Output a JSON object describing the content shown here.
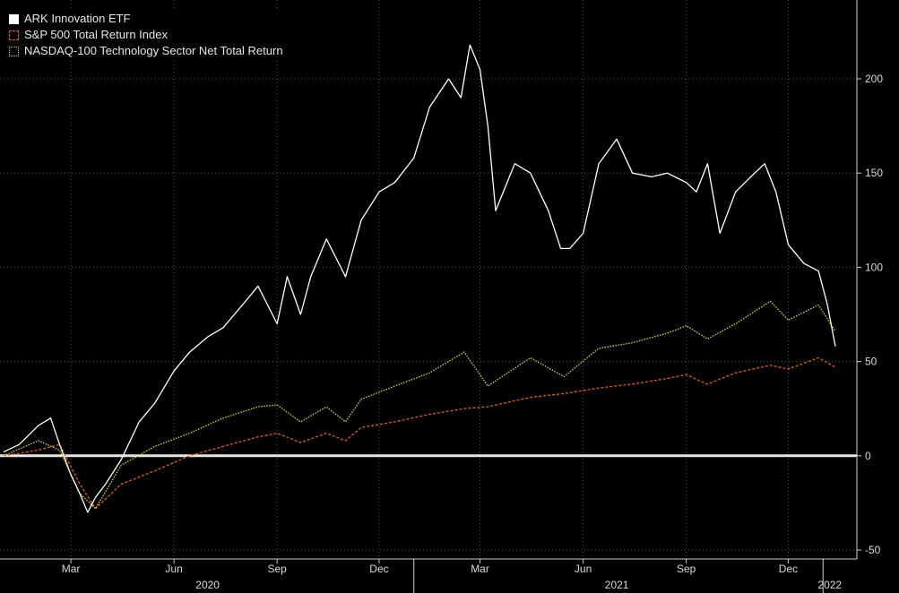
{
  "chart_data": {
    "type": "line",
    "ylim": [
      -50,
      230
    ],
    "ytick_values": [
      200,
      150,
      100,
      50,
      0,
      -50
    ],
    "ytick_labels": [
      "200",
      "150",
      "100",
      "50",
      "0",
      "-50"
    ],
    "xlim": [
      "2020-01-01",
      "2022-01-12"
    ],
    "month_ticks": [
      {
        "label": "Mar",
        "date": "2020-03-01"
      },
      {
        "label": "Jun",
        "date": "2020-06-01"
      },
      {
        "label": "Sep",
        "date": "2020-09-01"
      },
      {
        "label": "Dec",
        "date": "2020-12-01"
      },
      {
        "label": "Mar",
        "date": "2021-03-01"
      },
      {
        "label": "Jun",
        "date": "2021-06-01"
      },
      {
        "label": "Sep",
        "date": "2021-09-01"
      },
      {
        "label": "Dec",
        "date": "2021-12-01"
      }
    ],
    "year_labels": [
      {
        "label": "2020",
        "date": "2020-07-01"
      },
      {
        "label": "2021",
        "date": "2021-07-01"
      },
      {
        "label": "2022",
        "date": "2022-01-07"
      }
    ],
    "year_separators": [
      "2021-01-01",
      "2022-01-01"
    ],
    "zero_line": 0,
    "series": [
      {
        "name": "ARK Innovation ETF",
        "color": "#ffffff",
        "style": "solid",
        "x": [
          "2020-01-01",
          "2020-01-15",
          "2020-02-01",
          "2020-02-12",
          "2020-02-20",
          "2020-03-01",
          "2020-03-09",
          "2020-03-16",
          "2020-03-23",
          "2020-04-01",
          "2020-04-15",
          "2020-05-01",
          "2020-05-15",
          "2020-06-01",
          "2020-06-15",
          "2020-07-01",
          "2020-07-15",
          "2020-08-01",
          "2020-08-15",
          "2020-09-01",
          "2020-09-10",
          "2020-09-22",
          "2020-10-01",
          "2020-10-15",
          "2020-11-01",
          "2020-11-15",
          "2020-12-01",
          "2020-12-15",
          "2021-01-01",
          "2021-01-15",
          "2021-02-01",
          "2021-02-12",
          "2021-02-20",
          "2021-03-01",
          "2021-03-08",
          "2021-03-15",
          "2021-04-01",
          "2021-04-15",
          "2021-05-01",
          "2021-05-12",
          "2021-05-20",
          "2021-06-01",
          "2021-06-15",
          "2021-07-01",
          "2021-07-15",
          "2021-08-01",
          "2021-08-15",
          "2021-09-01",
          "2021-09-10",
          "2021-09-20",
          "2021-10-01",
          "2021-10-15",
          "2021-11-01",
          "2021-11-10",
          "2021-11-20",
          "2021-12-01",
          "2021-12-15",
          "2021-12-28",
          "2022-01-05",
          "2022-01-12"
        ],
        "values": [
          2,
          6,
          16,
          20,
          6,
          -10,
          -20,
          -30,
          -22,
          -15,
          -2,
          18,
          28,
          45,
          55,
          63,
          68,
          80,
          90,
          70,
          95,
          75,
          95,
          115,
          95,
          125,
          140,
          145,
          158,
          185,
          200,
          190,
          218,
          205,
          175,
          130,
          155,
          150,
          130,
          110,
          110,
          118,
          155,
          168,
          150,
          148,
          150,
          145,
          140,
          155,
          118,
          140,
          150,
          155,
          140,
          112,
          102,
          98,
          80,
          58
        ],
        "ylim": [
          -50,
          230
        ]
      },
      {
        "name": "S&P 500 Total Return Index",
        "color": "#e85a1b",
        "style": "dashed",
        "x": [
          "2020-01-01",
          "2020-02-01",
          "2020-02-20",
          "2020-03-09",
          "2020-03-23",
          "2020-04-15",
          "2020-05-15",
          "2020-06-15",
          "2020-07-15",
          "2020-08-15",
          "2020-09-01",
          "2020-09-22",
          "2020-10-15",
          "2020-11-01",
          "2020-11-15",
          "2020-12-15",
          "2021-01-15",
          "2021-02-15",
          "2021-03-08",
          "2021-04-15",
          "2021-05-15",
          "2021-06-15",
          "2021-07-15",
          "2021-08-15",
          "2021-09-01",
          "2021-09-20",
          "2021-10-15",
          "2021-11-15",
          "2021-12-01",
          "2021-12-28",
          "2022-01-12"
        ],
        "values": [
          0,
          3,
          6,
          -15,
          -28,
          -15,
          -8,
          0,
          5,
          10,
          12,
          7,
          12,
          8,
          15,
          18,
          22,
          25,
          26,
          31,
          33,
          36,
          38,
          41,
          43,
          38,
          44,
          48,
          46,
          52,
          47
        ],
        "ylim": [
          -50,
          230
        ]
      },
      {
        "name": "NASDAQ-100 Technology Sector Net Total Return",
        "color": "#e0df1e",
        "style": "dotted",
        "x": [
          "2020-01-01",
          "2020-02-01",
          "2020-02-20",
          "2020-03-09",
          "2020-03-23",
          "2020-04-15",
          "2020-05-15",
          "2020-06-15",
          "2020-07-15",
          "2020-08-15",
          "2020-09-01",
          "2020-09-22",
          "2020-10-15",
          "2020-11-01",
          "2020-11-15",
          "2020-12-15",
          "2021-01-15",
          "2021-02-15",
          "2021-03-08",
          "2021-04-15",
          "2021-05-15",
          "2021-06-15",
          "2021-07-15",
          "2021-08-15",
          "2021-09-01",
          "2021-09-20",
          "2021-10-15",
          "2021-11-15",
          "2021-12-01",
          "2021-12-28",
          "2022-01-12"
        ],
        "values": [
          0,
          8,
          3,
          -20,
          -28,
          -5,
          5,
          12,
          20,
          26,
          27,
          18,
          26,
          18,
          30,
          37,
          44,
          55,
          37,
          52,
          42,
          57,
          60,
          65,
          69,
          62,
          70,
          82,
          72,
          80,
          66
        ],
        "ylim": [
          -50,
          230
        ]
      }
    ]
  }
}
